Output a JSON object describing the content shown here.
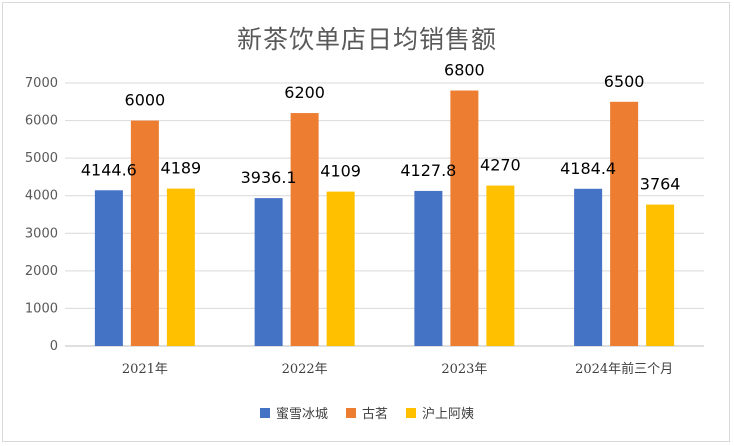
{
  "chart_data": {
    "type": "bar",
    "title": "新茶饮单店日均销售额",
    "categories": [
      "2021年",
      "2022年",
      "2023年",
      "2024年前三个月"
    ],
    "series": [
      {
        "name": "蜜雪冰城",
        "values": [
          4144.6,
          3936.1,
          4127.8,
          4184.4
        ],
        "labels": [
          "4144.6",
          "3936.1",
          "4127.8",
          "4184.4"
        ],
        "color": "#4472c4"
      },
      {
        "name": "古茗",
        "values": [
          6000,
          6200,
          6800,
          6500
        ],
        "labels": [
          "6000",
          "6200",
          "6800",
          "6500"
        ],
        "color": "#ed7d31"
      },
      {
        "name": "沪上阿姨",
        "values": [
          4189,
          4109,
          4270,
          3764
        ],
        "labels": [
          "4189",
          "4109",
          "4270",
          "3764"
        ],
        "color": "#ffc000"
      }
    ],
    "ylim": [
      0,
      7000
    ],
    "yticks": [
      "0",
      "1000",
      "2000",
      "3000",
      "4000",
      "5000",
      "6000",
      "7000"
    ],
    "grid": true,
    "legend_position": "bottom"
  }
}
